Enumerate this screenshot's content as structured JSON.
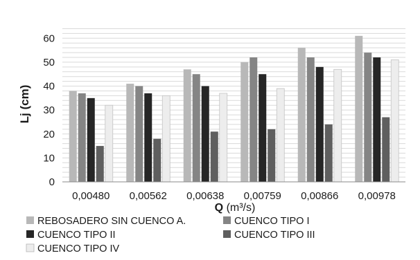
{
  "chart_data": {
    "type": "bar",
    "title": "",
    "ylabel": "Lj (cm)",
    "xlabel_bold": "Q",
    "xlabel_unit": "(m³/s)",
    "categories": [
      "0,00480",
      "0,00562",
      "0,00638",
      "0,00759",
      "0,00866",
      "0,00978"
    ],
    "ylim": [
      0,
      65
    ],
    "yticks": [
      0,
      10,
      20,
      30,
      40,
      50,
      60
    ],
    "grid": true,
    "legend_position": "bottom",
    "series": [
      {
        "name": "REBOSADERO SIN CUENCO A.",
        "color": "#b8b8b8",
        "values": [
          38,
          41,
          47,
          50,
          56,
          61
        ]
      },
      {
        "name": "CUENCO TIPO I",
        "color": "#858585",
        "values": [
          37,
          40,
          45,
          52,
          52,
          54
        ]
      },
      {
        "name": "CUENCO TIPO II",
        "color": "#262626",
        "values": [
          35,
          37,
          40,
          45,
          48,
          52
        ]
      },
      {
        "name": "CUENCO TIPO III",
        "color": "#5f5f5f",
        "values": [
          15,
          18,
          21,
          22,
          24,
          27
        ]
      },
      {
        "name": "CUENCO TIPO IV",
        "color": "#ededed",
        "values": [
          32,
          36,
          37,
          39,
          47,
          51
        ]
      }
    ]
  }
}
